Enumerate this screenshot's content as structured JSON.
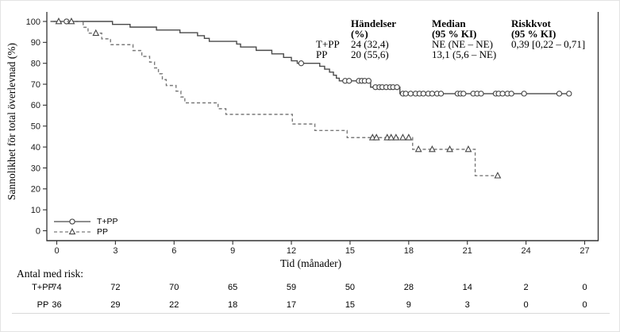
{
  "figure": {
    "stats_table": {
      "col_headers": [
        [
          "Händelser",
          "(%)"
        ],
        [
          "Median",
          "(95 % KI)"
        ],
        [
          "Riskkvot",
          "(95 % KI)"
        ]
      ],
      "rows": [
        {
          "label": "T+PP",
          "events": "24 (32,4)",
          "median": "NE (NE – NE)",
          "hazard_ratio": "0,39 [0,22 – 0,71]"
        },
        {
          "label": "PP",
          "events": "20 (55,6)",
          "median": "13,1 (5,6 – NE)",
          "hazard_ratio": ""
        }
      ]
    },
    "legend": [
      {
        "label": "T+PP",
        "marker": "circle-solid-line"
      },
      {
        "label": "PP",
        "marker": "triangle-dashed-line"
      }
    ]
  },
  "chart_data": {
    "type": "line",
    "subtype": "kaplan-meier-step",
    "title": "",
    "xlabel": "Tid (månader)",
    "ylabel": "Sannolikhet för total överlevnad (%)",
    "xlim": [
      0,
      27
    ],
    "ylim": [
      0,
      100
    ],
    "xticks": [
      0,
      3,
      6,
      9,
      12,
      15,
      18,
      21,
      24,
      27
    ],
    "yticks": [
      0,
      10,
      20,
      30,
      40,
      50,
      60,
      70,
      80,
      90,
      100
    ],
    "grid": false,
    "legend_position": "bottom-left-inside",
    "colors": {
      "tpp_line": "#4a4a4a",
      "pp_line": "#7a7a7a",
      "marker_stroke": "#444444",
      "axis": "#333333"
    },
    "series": [
      {
        "name": "T+PP",
        "line": "solid",
        "marker": "circle",
        "color": "#4a4a4a",
        "end_month": 26.3,
        "steps": [
          [
            0,
            100
          ],
          [
            2.85,
            98.6
          ],
          [
            3.75,
            97.3
          ],
          [
            5.1,
            95.9
          ],
          [
            6.3,
            94.6
          ],
          [
            7.2,
            93.2
          ],
          [
            7.55,
            91.9
          ],
          [
            7.8,
            90.5
          ],
          [
            9.2,
            89.2
          ],
          [
            9.4,
            87.8
          ],
          [
            10.2,
            86.2
          ],
          [
            11.0,
            84.5
          ],
          [
            11.6,
            82.8
          ],
          [
            12.0,
            81.2
          ],
          [
            12.3,
            80.0
          ],
          [
            13.45,
            78.6
          ],
          [
            13.7,
            77.2
          ],
          [
            13.95,
            75.8
          ],
          [
            14.15,
            74.3
          ],
          [
            14.3,
            72.9
          ],
          [
            14.45,
            71.6
          ],
          [
            16.05,
            68.6
          ],
          [
            17.55,
            65.5
          ]
        ],
        "censors": [
          [
            0.5,
            100
          ],
          [
            12.5,
            80.0
          ],
          [
            14.75,
            71.6
          ],
          [
            14.95,
            71.6
          ],
          [
            15.45,
            71.6
          ],
          [
            15.6,
            71.6
          ],
          [
            15.75,
            71.6
          ],
          [
            15.95,
            71.6
          ],
          [
            16.3,
            68.6
          ],
          [
            16.5,
            68.6
          ],
          [
            16.65,
            68.6
          ],
          [
            16.85,
            68.6
          ],
          [
            17.05,
            68.6
          ],
          [
            17.2,
            68.6
          ],
          [
            17.4,
            68.6
          ],
          [
            17.7,
            65.5
          ],
          [
            17.85,
            65.5
          ],
          [
            18.1,
            65.5
          ],
          [
            18.35,
            65.5
          ],
          [
            18.55,
            65.5
          ],
          [
            18.75,
            65.5
          ],
          [
            19.0,
            65.5
          ],
          [
            19.2,
            65.5
          ],
          [
            19.45,
            65.5
          ],
          [
            19.65,
            65.5
          ],
          [
            20.5,
            65.5
          ],
          [
            20.65,
            65.5
          ],
          [
            20.8,
            65.5
          ],
          [
            21.3,
            65.5
          ],
          [
            21.5,
            65.5
          ],
          [
            21.7,
            65.5
          ],
          [
            22.45,
            65.5
          ],
          [
            22.6,
            65.5
          ],
          [
            22.8,
            65.5
          ],
          [
            23.05,
            65.5
          ],
          [
            23.25,
            65.5
          ],
          [
            23.9,
            65.5
          ],
          [
            25.7,
            65.5
          ],
          [
            26.2,
            65.5
          ]
        ]
      },
      {
        "name": "PP",
        "line": "dashed",
        "marker": "triangle",
        "color": "#7a7a7a",
        "end_month": 22.6,
        "steps": [
          [
            0,
            100
          ],
          [
            1.35,
            97.2
          ],
          [
            1.6,
            94.4
          ],
          [
            2.3,
            91.7
          ],
          [
            2.75,
            88.9
          ],
          [
            3.9,
            86.1
          ],
          [
            4.35,
            83.3
          ],
          [
            4.75,
            80.6
          ],
          [
            5.0,
            77.8
          ],
          [
            5.2,
            75.0
          ],
          [
            5.4,
            72.2
          ],
          [
            5.6,
            69.4
          ],
          [
            6.1,
            66.7
          ],
          [
            6.35,
            63.9
          ],
          [
            6.55,
            61.1
          ],
          [
            8.25,
            58.3
          ],
          [
            8.65,
            55.6
          ],
          [
            12.05,
            51.0
          ],
          [
            13.2,
            47.9
          ],
          [
            14.85,
            44.5
          ],
          [
            18.2,
            38.9
          ],
          [
            21.4,
            26.3
          ]
        ],
        "censors": [
          [
            0.1,
            100
          ],
          [
            0.75,
            100
          ],
          [
            2.0,
            94.4
          ],
          [
            16.15,
            44.5
          ],
          [
            16.35,
            44.5
          ],
          [
            16.9,
            44.5
          ],
          [
            17.1,
            44.5
          ],
          [
            17.35,
            44.5
          ],
          [
            17.7,
            44.5
          ],
          [
            18.0,
            44.5
          ],
          [
            18.5,
            38.9
          ],
          [
            19.2,
            38.9
          ],
          [
            20.1,
            38.9
          ],
          [
            21.05,
            38.9
          ],
          [
            22.55,
            26.3
          ]
        ]
      }
    ],
    "risk_table": {
      "title": "Antal med risk:",
      "time_points": [
        0,
        3,
        6,
        9,
        12,
        15,
        18,
        21,
        24,
        27
      ],
      "rows": [
        {
          "label": "T+PP",
          "counts": [
            74,
            72,
            70,
            65,
            59,
            50,
            28,
            14,
            2,
            0
          ]
        },
        {
          "label": "PP",
          "counts": [
            36,
            29,
            22,
            18,
            17,
            15,
            9,
            3,
            0,
            0
          ]
        }
      ]
    }
  }
}
